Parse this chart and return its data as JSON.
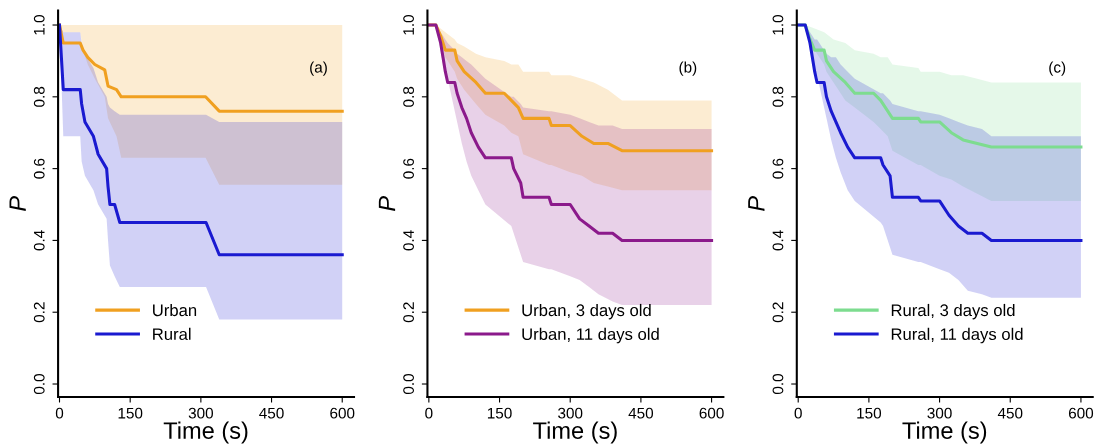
{
  "chart_data": [
    {
      "type": "line",
      "xlabel": "Time (s)",
      "ylabel": "P",
      "annotations": [
        "(a)"
      ],
      "xlim": [
        -3,
        625
      ],
      "xticks": [
        0,
        150,
        300,
        450,
        600
      ],
      "ylim": [
        -0.036,
        1.04
      ],
      "yticks": [
        {
          "value": 0,
          "label": "0.0"
        },
        {
          "value": 0.2,
          "label": "0.2"
        },
        {
          "value": 0.4,
          "label": "0.4"
        },
        {
          "value": 0.6,
          "label": "0.6"
        },
        {
          "value": 0.8,
          "label": "0.8"
        },
        {
          "value": 1,
          "label": "1.0"
        }
      ],
      "grid": false,
      "legend": "bottom left",
      "marker": "none",
      "line_style": "solid",
      "series": [
        {
          "name": "Urban",
          "color": "#f0a020",
          "x": [
            0,
            8,
            44,
            50,
            60,
            75,
            96,
            103,
            121,
            131,
            310,
            339,
            600
          ],
          "values": [
            1.0,
            0.95,
            0.95,
            0.93,
            0.91,
            0.89,
            0.875,
            0.83,
            0.82,
            0.8,
            0.8,
            0.76,
            0.76
          ],
          "upper": [
            1,
            1,
            1,
            1,
            1,
            1,
            1,
            1,
            1,
            1,
            1,
            1,
            1
          ],
          "lower": [
            0.98,
            0.98,
            0.98,
            0.93,
            0.89,
            0.85,
            0.8,
            0.74,
            0.69,
            0.63,
            0.63,
            0.555,
            0.555
          ]
        },
        {
          "name": "Rural",
          "color": "#1a1ad0",
          "x": [
            0,
            8,
            44,
            47,
            54,
            72,
            82,
            100,
            103,
            107,
            117,
            128,
            311,
            339,
            600
          ],
          "values": [
            1.0,
            0.82,
            0.82,
            0.78,
            0.73,
            0.69,
            0.64,
            0.6,
            0.55,
            0.5,
            0.5,
            0.45,
            0.45,
            0.36,
            0.36
          ],
          "upper": [
            1.0,
            0.98,
            0.98,
            0.95,
            0.92,
            0.88,
            0.84,
            0.8,
            0.78,
            0.77,
            0.76,
            0.75,
            0.75,
            0.73,
            0.73
          ],
          "lower": [
            1.0,
            0.69,
            0.69,
            0.62,
            0.58,
            0.54,
            0.5,
            0.46,
            0.4,
            0.33,
            0.3,
            0.27,
            0.27,
            0.18,
            0.18
          ]
        }
      ]
    },
    {
      "type": "line",
      "xlabel": "Time (s)",
      "ylabel": "P",
      "annotations": [
        "(b)"
      ],
      "xlim": [
        -3,
        625
      ],
      "xticks": [
        0,
        150,
        300,
        450,
        600
      ],
      "ylim": [
        -0.036,
        1.04
      ],
      "yticks": [
        {
          "value": 0,
          "label": "0.0"
        },
        {
          "value": 0.2,
          "label": "0.2"
        },
        {
          "value": 0.4,
          "label": "0.4"
        },
        {
          "value": 0.6,
          "label": "0.6"
        },
        {
          "value": 0.8,
          "label": "0.8"
        },
        {
          "value": 1,
          "label": "1.0"
        }
      ],
      "grid": false,
      "legend": "bottom left",
      "marker": "none",
      "line_style": "solid",
      "series": [
        {
          "name": "Urban, 3 days old",
          "color": "#f0a020",
          "x": [
            0,
            15,
            25,
            35,
            55,
            60,
            75,
            100,
            120,
            160,
            175,
            190,
            200,
            255,
            260,
            300,
            325,
            350,
            380,
            410,
            600
          ],
          "values": [
            1,
            1,
            0.97,
            0.93,
            0.93,
            0.9,
            0.87,
            0.84,
            0.81,
            0.81,
            0.79,
            0.77,
            0.74,
            0.74,
            0.72,
            0.72,
            0.69,
            0.67,
            0.67,
            0.65,
            0.65
          ],
          "upper": [
            1,
            1,
            0.99,
            0.98,
            0.96,
            0.95,
            0.94,
            0.92,
            0.91,
            0.9,
            0.89,
            0.89,
            0.87,
            0.87,
            0.86,
            0.86,
            0.85,
            0.84,
            0.82,
            0.79,
            0.79
          ],
          "lower": [
            1,
            1,
            0.95,
            0.91,
            0.87,
            0.85,
            0.82,
            0.78,
            0.75,
            0.72,
            0.7,
            0.69,
            0.64,
            0.61,
            0.61,
            0.59,
            0.58,
            0.56,
            0.55,
            0.54,
            0.54
          ]
        },
        {
          "name": "Urban, 11 days old",
          "color": "#8b1a8b",
          "x": [
            0,
            15,
            25,
            30,
            35,
            40,
            55,
            60,
            70,
            80,
            90,
            105,
            120,
            175,
            180,
            195,
            200,
            255,
            260,
            300,
            320,
            340,
            360,
            390,
            410,
            600
          ],
          "values": [
            1,
            1,
            0.95,
            0.91,
            0.87,
            0.84,
            0.84,
            0.81,
            0.77,
            0.74,
            0.7,
            0.66,
            0.63,
            0.63,
            0.6,
            0.56,
            0.52,
            0.52,
            0.5,
            0.5,
            0.46,
            0.44,
            0.42,
            0.42,
            0.4,
            0.4
          ],
          "upper": [
            1,
            1,
            0.98,
            0.97,
            0.96,
            0.95,
            0.93,
            0.92,
            0.91,
            0.9,
            0.89,
            0.87,
            0.85,
            0.8,
            0.8,
            0.78,
            0.77,
            0.76,
            0.76,
            0.75,
            0.74,
            0.73,
            0.72,
            0.72,
            0.71,
            0.71
          ],
          "lower": [
            1,
            1,
            0.93,
            0.89,
            0.86,
            0.85,
            0.76,
            0.73,
            0.67,
            0.62,
            0.58,
            0.54,
            0.5,
            0.44,
            0.42,
            0.36,
            0.34,
            0.32,
            0.32,
            0.3,
            0.29,
            0.27,
            0.25,
            0.23,
            0.22,
            0.22
          ]
        }
      ]
    },
    {
      "type": "line",
      "xlabel": "Time (s)",
      "ylabel": "P",
      "annotations": [
        "(c)"
      ],
      "xlim": [
        -3,
        625
      ],
      "xticks": [
        0,
        150,
        300,
        450,
        600
      ],
      "ylim": [
        -0.036,
        1.04
      ],
      "yticks": [
        {
          "value": 0,
          "label": "0.0"
        },
        {
          "value": 0.2,
          "label": "0.2"
        },
        {
          "value": 0.4,
          "label": "0.4"
        },
        {
          "value": 0.6,
          "label": "0.6"
        },
        {
          "value": 0.8,
          "label": "0.8"
        },
        {
          "value": 1,
          "label": "1.0"
        }
      ],
      "grid": false,
      "legend": "bottom left",
      "marker": "none",
      "line_style": "solid",
      "series": [
        {
          "name": "Rural, 3 days old",
          "color": "#7ddc8f",
          "x": [
            0,
            15,
            25,
            35,
            55,
            60,
            75,
            100,
            120,
            160,
            175,
            190,
            200,
            255,
            260,
            300,
            325,
            350,
            380,
            410,
            600
          ],
          "values": [
            1,
            1,
            0.96,
            0.93,
            0.93,
            0.9,
            0.87,
            0.84,
            0.81,
            0.81,
            0.79,
            0.76,
            0.74,
            0.74,
            0.73,
            0.73,
            0.7,
            0.68,
            0.67,
            0.66,
            0.66
          ],
          "upper": [
            1,
            1,
            0.995,
            0.99,
            0.98,
            0.975,
            0.96,
            0.95,
            0.93,
            0.92,
            0.91,
            0.91,
            0.89,
            0.88,
            0.87,
            0.87,
            0.86,
            0.86,
            0.85,
            0.84,
            0.84
          ],
          "lower": [
            1,
            1,
            0.96,
            0.93,
            0.89,
            0.87,
            0.84,
            0.79,
            0.77,
            0.73,
            0.71,
            0.69,
            0.65,
            0.61,
            0.61,
            0.58,
            0.57,
            0.55,
            0.53,
            0.51,
            0.51
          ]
        },
        {
          "name": "Rural, 11 days old",
          "color": "#1a1ad0",
          "x": [
            0,
            15,
            25,
            30,
            35,
            40,
            55,
            60,
            70,
            80,
            90,
            105,
            120,
            175,
            180,
            195,
            200,
            255,
            260,
            300,
            320,
            340,
            360,
            390,
            410,
            600
          ],
          "values": [
            1,
            1,
            0.95,
            0.91,
            0.87,
            0.84,
            0.84,
            0.8,
            0.76,
            0.73,
            0.7,
            0.66,
            0.63,
            0.63,
            0.61,
            0.58,
            0.52,
            0.52,
            0.51,
            0.51,
            0.47,
            0.44,
            0.42,
            0.42,
            0.4,
            0.4
          ],
          "upper": [
            1,
            1,
            0.98,
            0.97,
            0.96,
            0.96,
            0.93,
            0.92,
            0.91,
            0.91,
            0.89,
            0.87,
            0.85,
            0.81,
            0.81,
            0.79,
            0.78,
            0.76,
            0.76,
            0.75,
            0.74,
            0.73,
            0.72,
            0.71,
            0.69,
            0.69
          ],
          "lower": [
            1,
            1,
            0.93,
            0.89,
            0.87,
            0.86,
            0.77,
            0.74,
            0.68,
            0.63,
            0.59,
            0.54,
            0.51,
            0.45,
            0.44,
            0.38,
            0.36,
            0.34,
            0.34,
            0.32,
            0.31,
            0.29,
            0.26,
            0.25,
            0.24,
            0.24
          ]
        }
      ]
    }
  ]
}
